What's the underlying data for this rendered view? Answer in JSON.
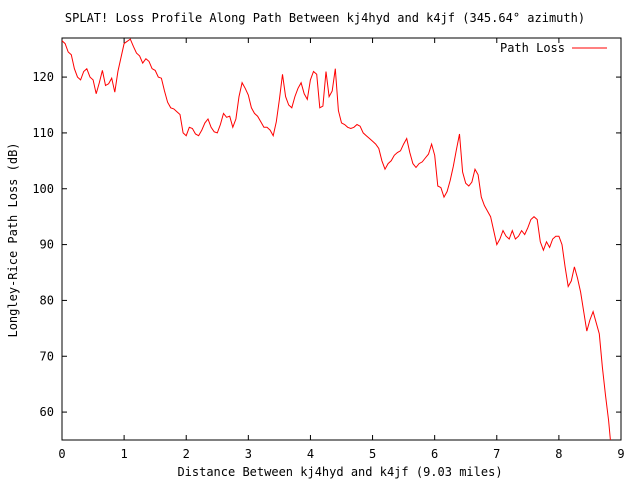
{
  "chart_data": {
    "type": "line",
    "title": "SPLAT! Loss Profile Along Path Between kj4hyd and k4jf (345.64° azimuth)",
    "xlabel": "Distance Between kj4hyd and k4jf (9.03 miles)",
    "ylabel": "Longley-Rice Path Loss (dB)",
    "xlim": [
      0,
      9
    ],
    "ylim": [
      55,
      127
    ],
    "x_ticks": [
      0,
      1,
      2,
      3,
      4,
      5,
      6,
      7,
      8,
      9
    ],
    "y_ticks": [
      60,
      70,
      80,
      90,
      100,
      110,
      120
    ],
    "grid": false,
    "legend_position": "top-right",
    "colors": {
      "line": "#ff0000",
      "axes": "#000000"
    },
    "series": [
      {
        "name": "Path Loss",
        "points": [
          [
            0.0,
            126.5
          ],
          [
            0.05,
            126.0
          ],
          [
            0.1,
            124.5
          ],
          [
            0.15,
            124.0
          ],
          [
            0.2,
            121.5
          ],
          [
            0.25,
            120.0
          ],
          [
            0.3,
            119.5
          ],
          [
            0.35,
            121.0
          ],
          [
            0.4,
            121.5
          ],
          [
            0.45,
            120.0
          ],
          [
            0.5,
            119.5
          ],
          [
            0.55,
            117.0
          ],
          [
            0.6,
            119.0
          ],
          [
            0.65,
            121.2
          ],
          [
            0.7,
            118.5
          ],
          [
            0.75,
            118.8
          ],
          [
            0.8,
            119.8
          ],
          [
            0.85,
            117.3
          ],
          [
            0.9,
            121.0
          ],
          [
            0.95,
            123.5
          ],
          [
            1.0,
            126.0
          ],
          [
            1.05,
            126.4
          ],
          [
            1.1,
            126.8
          ],
          [
            1.15,
            125.5
          ],
          [
            1.2,
            124.3
          ],
          [
            1.25,
            123.8
          ],
          [
            1.3,
            122.5
          ],
          [
            1.35,
            123.3
          ],
          [
            1.4,
            122.8
          ],
          [
            1.45,
            121.5
          ],
          [
            1.5,
            121.2
          ],
          [
            1.55,
            120.0
          ],
          [
            1.6,
            119.8
          ],
          [
            1.65,
            117.5
          ],
          [
            1.7,
            115.5
          ],
          [
            1.75,
            114.5
          ],
          [
            1.8,
            114.3
          ],
          [
            1.85,
            113.8
          ],
          [
            1.9,
            113.3
          ],
          [
            1.95,
            110.0
          ],
          [
            2.0,
            109.5
          ],
          [
            2.05,
            111.0
          ],
          [
            2.1,
            110.8
          ],
          [
            2.15,
            109.8
          ],
          [
            2.2,
            109.5
          ],
          [
            2.25,
            110.5
          ],
          [
            2.3,
            111.8
          ],
          [
            2.35,
            112.5
          ],
          [
            2.4,
            111.0
          ],
          [
            2.45,
            110.2
          ],
          [
            2.5,
            110.0
          ],
          [
            2.55,
            111.5
          ],
          [
            2.6,
            113.5
          ],
          [
            2.65,
            112.8
          ],
          [
            2.7,
            113.0
          ],
          [
            2.75,
            111.0
          ],
          [
            2.8,
            112.5
          ],
          [
            2.85,
            116.5
          ],
          [
            2.9,
            119.0
          ],
          [
            2.95,
            118.0
          ],
          [
            3.0,
            116.8
          ],
          [
            3.05,
            114.5
          ],
          [
            3.1,
            113.5
          ],
          [
            3.15,
            113.0
          ],
          [
            3.2,
            112.0
          ],
          [
            3.25,
            111.0
          ],
          [
            3.3,
            111.0
          ],
          [
            3.35,
            110.5
          ],
          [
            3.4,
            109.5
          ],
          [
            3.45,
            112.0
          ],
          [
            3.5,
            116.0
          ],
          [
            3.55,
            120.5
          ],
          [
            3.6,
            116.5
          ],
          [
            3.65,
            115.0
          ],
          [
            3.7,
            114.5
          ],
          [
            3.75,
            116.5
          ],
          [
            3.8,
            118.0
          ],
          [
            3.85,
            119.0
          ],
          [
            3.9,
            117.0
          ],
          [
            3.95,
            116.0
          ],
          [
            4.0,
            119.5
          ],
          [
            4.05,
            121.0
          ],
          [
            4.1,
            120.5
          ],
          [
            4.15,
            114.5
          ],
          [
            4.2,
            114.8
          ],
          [
            4.25,
            121.0
          ],
          [
            4.3,
            116.5
          ],
          [
            4.35,
            117.5
          ],
          [
            4.4,
            121.5
          ],
          [
            4.45,
            114.0
          ],
          [
            4.5,
            111.8
          ],
          [
            4.55,
            111.5
          ],
          [
            4.6,
            111.0
          ],
          [
            4.65,
            110.8
          ],
          [
            4.7,
            111.0
          ],
          [
            4.75,
            111.5
          ],
          [
            4.8,
            111.2
          ],
          [
            4.85,
            110.0
          ],
          [
            4.9,
            109.5
          ],
          [
            4.95,
            109.0
          ],
          [
            5.0,
            108.5
          ],
          [
            5.05,
            108.0
          ],
          [
            5.1,
            107.2
          ],
          [
            5.15,
            105.0
          ],
          [
            5.2,
            103.5
          ],
          [
            5.25,
            104.5
          ],
          [
            5.3,
            105.0
          ],
          [
            5.35,
            106.0
          ],
          [
            5.4,
            106.5
          ],
          [
            5.45,
            106.8
          ],
          [
            5.5,
            108.0
          ],
          [
            5.55,
            109.0
          ],
          [
            5.6,
            106.5
          ],
          [
            5.65,
            104.5
          ],
          [
            5.7,
            103.8
          ],
          [
            5.75,
            104.5
          ],
          [
            5.8,
            104.8
          ],
          [
            5.85,
            105.5
          ],
          [
            5.9,
            106.2
          ],
          [
            5.95,
            108.0
          ],
          [
            6.0,
            106.0
          ],
          [
            6.05,
            100.5
          ],
          [
            6.1,
            100.2
          ],
          [
            6.15,
            98.5
          ],
          [
            6.2,
            99.5
          ],
          [
            6.25,
            101.5
          ],
          [
            6.3,
            104.0
          ],
          [
            6.35,
            107.0
          ],
          [
            6.4,
            109.8
          ],
          [
            6.45,
            103.0
          ],
          [
            6.5,
            101.0
          ],
          [
            6.55,
            100.5
          ],
          [
            6.6,
            101.2
          ],
          [
            6.65,
            103.5
          ],
          [
            6.7,
            102.5
          ],
          [
            6.75,
            98.5
          ],
          [
            6.8,
            97.0
          ],
          [
            6.85,
            96.0
          ],
          [
            6.9,
            95.0
          ],
          [
            6.95,
            92.5
          ],
          [
            7.0,
            90.0
          ],
          [
            7.05,
            91.0
          ],
          [
            7.1,
            92.5
          ],
          [
            7.15,
            91.5
          ],
          [
            7.2,
            91.0
          ],
          [
            7.25,
            92.5
          ],
          [
            7.3,
            91.0
          ],
          [
            7.35,
            91.5
          ],
          [
            7.4,
            92.5
          ],
          [
            7.45,
            91.8
          ],
          [
            7.5,
            93.0
          ],
          [
            7.55,
            94.5
          ],
          [
            7.6,
            95.0
          ],
          [
            7.65,
            94.5
          ],
          [
            7.7,
            90.5
          ],
          [
            7.75,
            89.0
          ],
          [
            7.8,
            90.5
          ],
          [
            7.85,
            89.5
          ],
          [
            7.9,
            91.0
          ],
          [
            7.95,
            91.5
          ],
          [
            8.0,
            91.5
          ],
          [
            8.05,
            90.0
          ],
          [
            8.1,
            86.0
          ],
          [
            8.15,
            82.5
          ],
          [
            8.2,
            83.5
          ],
          [
            8.25,
            86.0
          ],
          [
            8.3,
            84.0
          ],
          [
            8.35,
            81.5
          ],
          [
            8.4,
            78.0
          ],
          [
            8.45,
            74.5
          ],
          [
            8.5,
            76.5
          ],
          [
            8.55,
            78.0
          ],
          [
            8.6,
            76.0
          ],
          [
            8.65,
            74.0
          ],
          [
            8.7,
            68.0
          ],
          [
            8.75,
            63.0
          ],
          [
            8.8,
            58.5
          ],
          [
            8.83,
            55.0
          ]
        ]
      }
    ]
  }
}
